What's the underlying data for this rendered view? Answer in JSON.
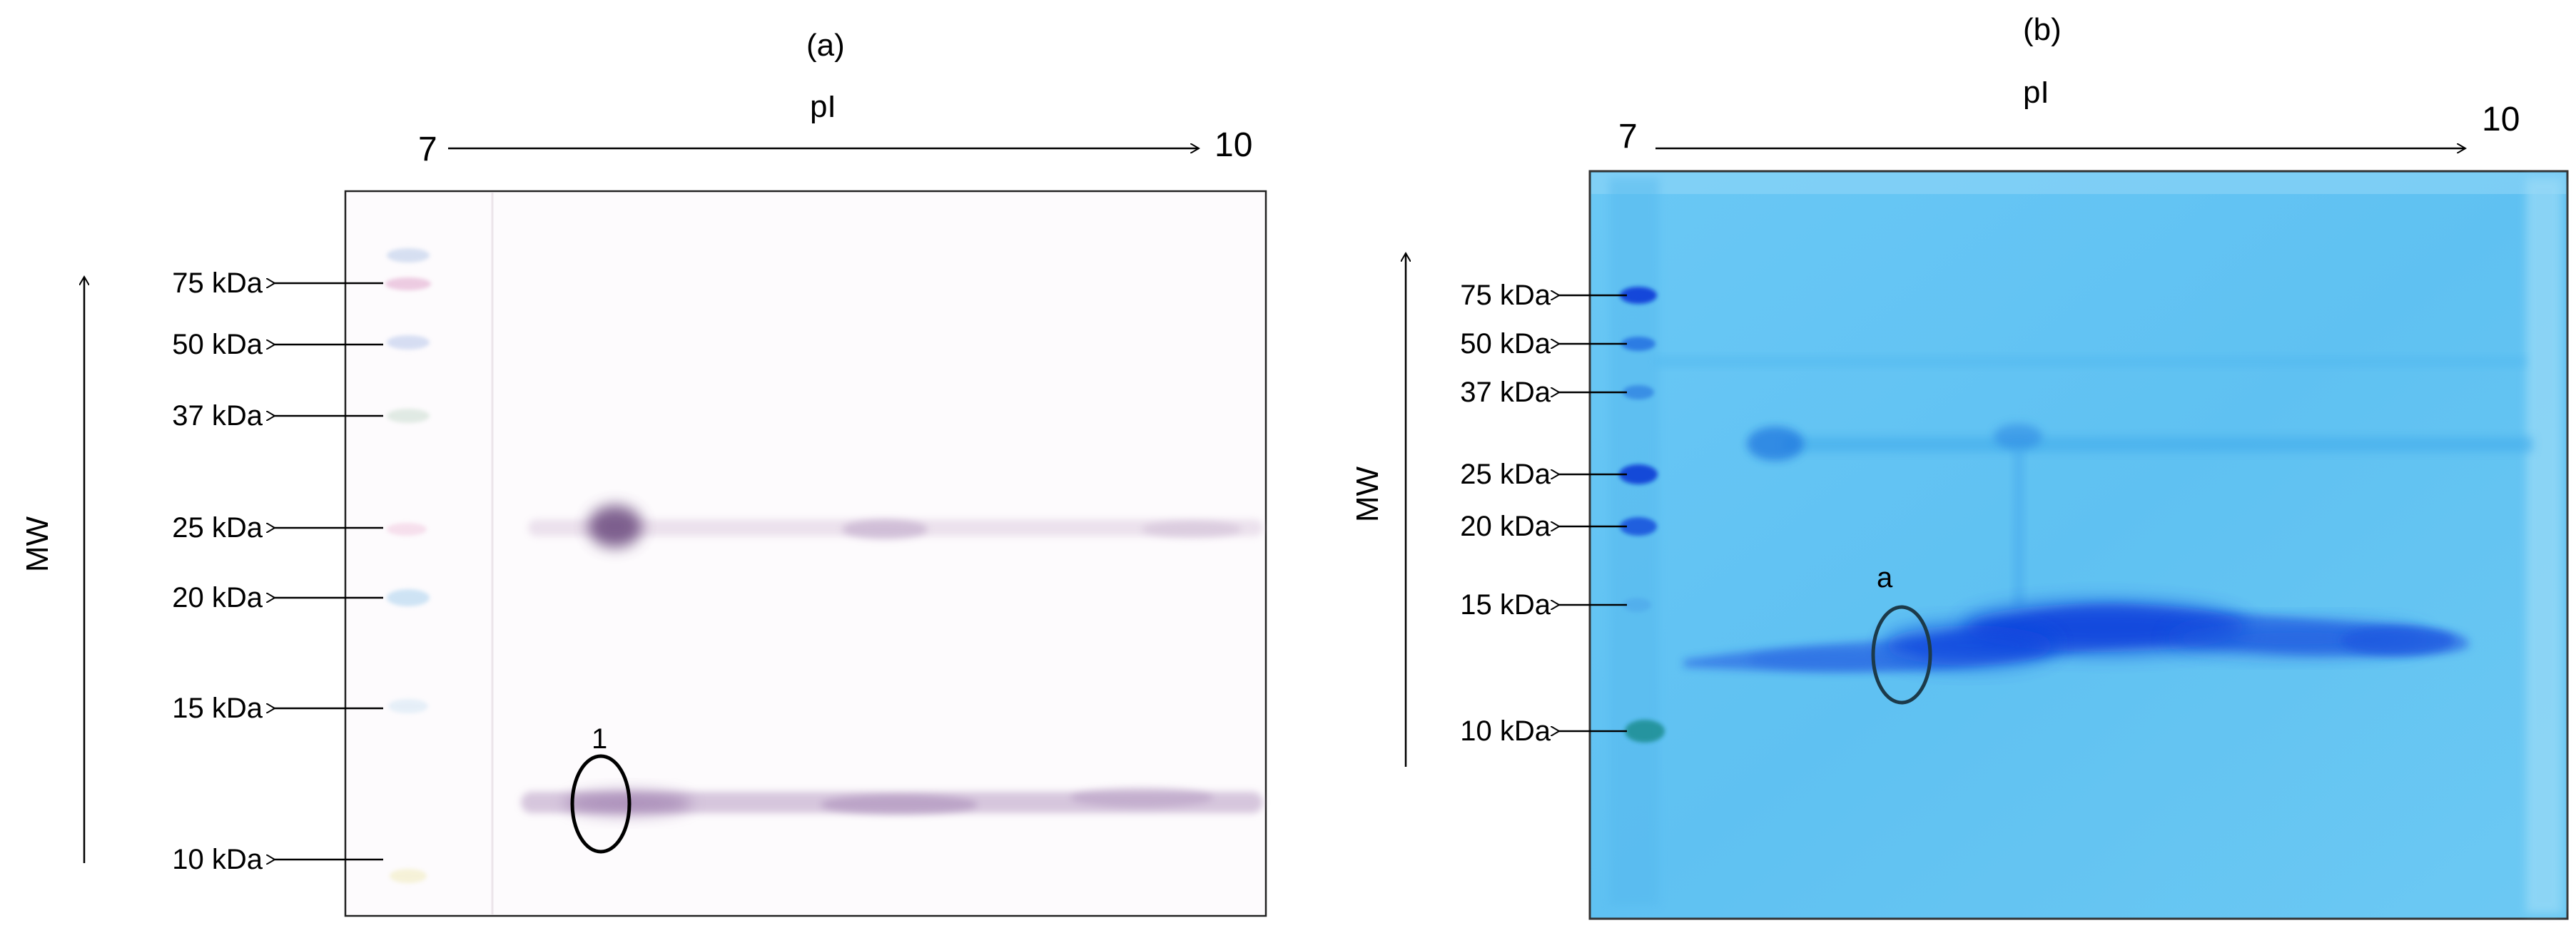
{
  "panels": [
    {
      "label": "(a)",
      "axis_label": "pI",
      "ph_start": "7",
      "ph_end": "10",
      "mw_label": "MW",
      "markers": [
        "75 kDa",
        "50 kDa",
        "37 kDa",
        "25 kDa",
        "20 kDa",
        "15 kDa",
        "10 kDa"
      ],
      "spot_label": "1",
      "gel_color": "#fdfbfd",
      "stain_color": "#9a7aa5"
    },
    {
      "label": "(b)",
      "axis_label": "pI",
      "ph_start": "7",
      "ph_end": "10",
      "mw_label": "MW",
      "markers": [
        "75 kDa",
        "50 kDa",
        "37 kDa",
        "25 kDa",
        "20 kDa",
        "15 kDa",
        "10 kDa"
      ],
      "spot_label": "a",
      "gel_color": "#63c4f3",
      "stain_color": "#1346e0"
    }
  ]
}
